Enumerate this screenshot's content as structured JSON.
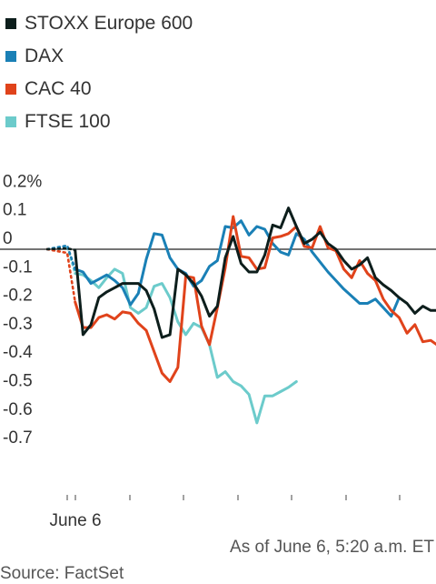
{
  "legend": [
    {
      "label": "STOXX Europe 600",
      "color": "#0d1e1c"
    },
    {
      "label": "DAX",
      "color": "#1a80b6"
    },
    {
      "label": "CAC 40",
      "color": "#e0431b"
    },
    {
      "label": "FTSE 100",
      "color": "#6ccbcb"
    }
  ],
  "footer": {
    "as_of": "As of June 6, 5:20 a.m. ET",
    "source": "Source: FactSet"
  },
  "chart_data": {
    "type": "line",
    "title": "",
    "xlabel": "",
    "ylabel": "",
    "y_tick_labels": [
      "0.2%",
      "0.1",
      "0",
      "-0.1",
      "-0.2",
      "-0.3",
      "-0.4",
      "-0.5",
      "-0.6",
      "-0.7"
    ],
    "y_ticks": [
      0.2,
      0.1,
      0,
      -0.1,
      -0.2,
      -0.3,
      -0.4,
      -0.5,
      -0.6,
      -0.7
    ],
    "ylim": [
      -0.75,
      0.2
    ],
    "x_tick_labels": [
      "June 6"
    ],
    "zero_line": true,
    "grid": false,
    "series": [
      {
        "name": "STOXX Europe 600",
        "color": "#0d1e1c",
        "lead_in": [
          0,
          0.003
        ],
        "values": [
          -0.003,
          -0.3,
          -0.265,
          -0.17,
          -0.15,
          -0.135,
          -0.12,
          -0.12,
          -0.12,
          -0.145,
          -0.21,
          -0.31,
          -0.3,
          -0.07,
          -0.09,
          -0.12,
          -0.165,
          -0.235,
          -0.2,
          -0.03,
          0.045,
          -0.05,
          -0.08,
          -0.08,
          -0.02,
          0.085,
          0.075,
          0.145,
          0.08,
          0.02,
          0.035,
          0.06,
          0.02,
          0,
          -0.04,
          -0.07,
          -0.055,
          -0.03,
          -0.1,
          -0.125,
          -0.145,
          -0.17,
          -0.19,
          -0.225,
          -0.2,
          -0.215,
          -0.215,
          -0.215,
          -0.15
        ]
      },
      {
        "name": "DAX",
        "color": "#1a80b6",
        "lead_in": [
          0,
          0.013
        ],
        "values": [
          -0.07,
          -0.08,
          -0.12,
          -0.105,
          -0.09,
          -0.11,
          -0.135,
          -0.195,
          -0.155,
          -0.035,
          0.055,
          0.05,
          -0.03,
          -0.07,
          -0.085,
          -0.13,
          -0.11,
          -0.06,
          -0.04,
          0.08,
          0.075,
          0.1,
          0.05,
          0.08,
          0.07,
          0.02,
          -0.01,
          -0.02,
          0.055,
          0.035,
          -0.01,
          -0.045,
          -0.08,
          -0.11,
          -0.14,
          -0.165,
          -0.19,
          -0.19,
          -0.175,
          -0.205,
          -0.235,
          -0.17
        ]
      },
      {
        "name": "CAC 40",
        "color": "#e0431b",
        "lead_in": [
          0,
          -0.013
        ],
        "values": [
          -0.185,
          -0.275,
          -0.275,
          -0.24,
          -0.23,
          -0.245,
          -0.22,
          -0.225,
          -0.26,
          -0.285,
          -0.36,
          -0.435,
          -0.465,
          -0.415,
          -0.095,
          -0.1,
          -0.27,
          -0.335,
          -0.205,
          -0.065,
          0.115,
          -0.025,
          -0.03,
          -0.07,
          -0.065,
          0.04,
          0.045,
          0.055,
          0.08,
          0.01,
          0.005,
          0.08,
          0.005,
          -0.005,
          -0.07,
          -0.1,
          -0.04,
          -0.085,
          -0.11,
          -0.175,
          -0.215,
          -0.24,
          -0.295,
          -0.265,
          -0.325,
          -0.32,
          -0.34,
          -0.29
        ]
      },
      {
        "name": "FTSE 100",
        "color": "#6ccbcb",
        "lead_in": [
          0,
          0.011
        ],
        "values": [
          -0.085,
          -0.09,
          -0.11,
          -0.135,
          -0.1,
          -0.07,
          -0.085,
          -0.205,
          -0.225,
          -0.205,
          -0.13,
          -0.12,
          -0.17,
          -0.255,
          -0.3,
          -0.26,
          -0.275,
          -0.335,
          -0.45,
          -0.43,
          -0.465,
          -0.48,
          -0.51,
          -0.61,
          -0.515,
          -0.515,
          -0.5,
          -0.485,
          -0.465
        ]
      }
    ]
  }
}
